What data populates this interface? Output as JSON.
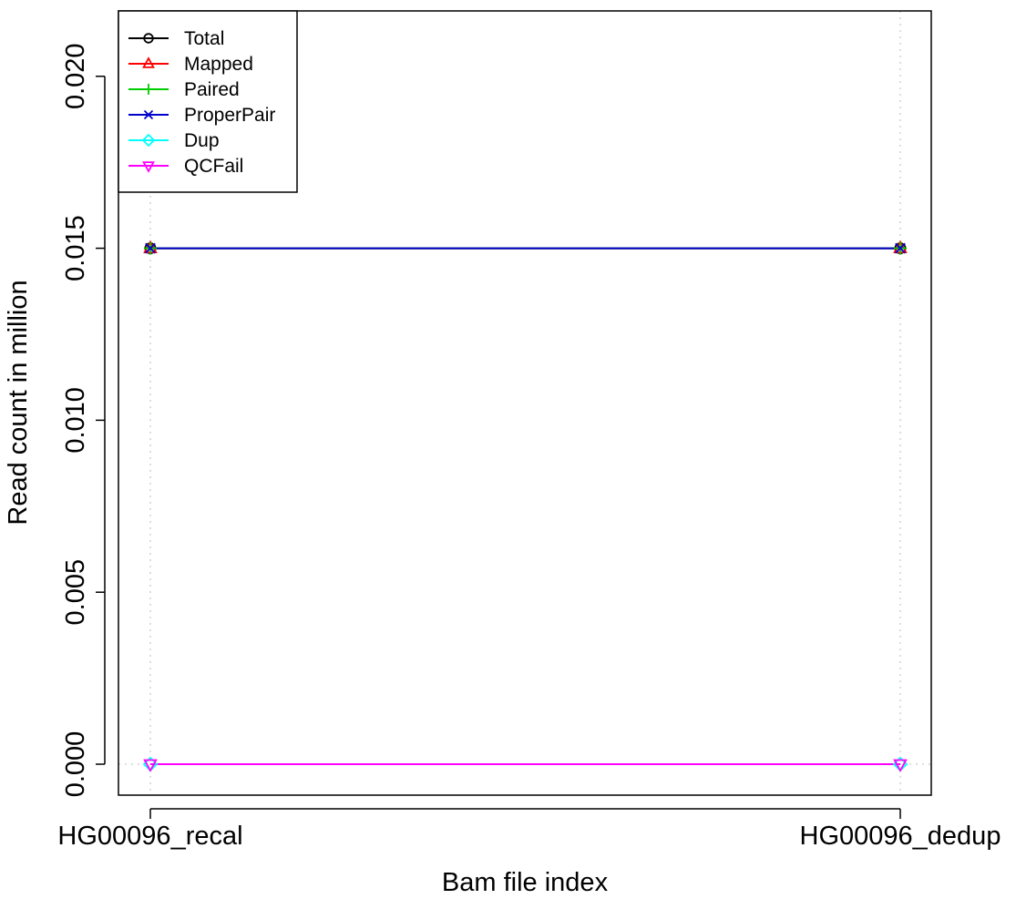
{
  "chart_data": {
    "type": "line",
    "title": "",
    "xlabel": "Bam file index",
    "ylabel": "Read count in million",
    "categories": [
      "HG00096_recal",
      "HG00096_dedup"
    ],
    "ylim": [
      -0.0009,
      0.0219
    ],
    "yticks": [
      "0.000",
      "0.005",
      "0.010",
      "0.015",
      "0.020"
    ],
    "ytick_values": [
      0,
      0.005,
      0.01,
      0.015,
      0.02
    ],
    "grid": "vertical dotted lines at each category",
    "legend_position": "top-left",
    "series": [
      {
        "name": "Total",
        "values": [
          0.015,
          0.015
        ],
        "color": "#000000",
        "marker": "circle"
      },
      {
        "name": "Mapped",
        "values": [
          0.015,
          0.015
        ],
        "color": "#ff0000",
        "marker": "triangle-up"
      },
      {
        "name": "Paired",
        "values": [
          0.015,
          0.015
        ],
        "color": "#00cd00",
        "marker": "plus"
      },
      {
        "name": "ProperPair",
        "values": [
          0.015,
          0.015
        ],
        "color": "#0000cd",
        "marker": "cross"
      },
      {
        "name": "Dup",
        "values": [
          0,
          0
        ],
        "color": "#00ffff",
        "marker": "diamond"
      },
      {
        "name": "QCFail",
        "values": [
          0,
          0
        ],
        "color": "#ff00ff",
        "marker": "triangle-down"
      }
    ]
  }
}
